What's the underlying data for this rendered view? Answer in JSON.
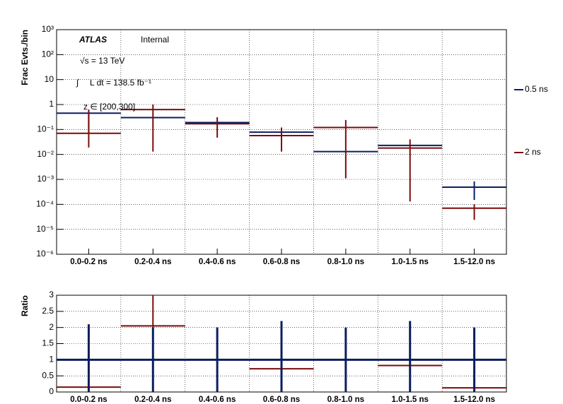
{
  "chart_data": [
    {
      "type": "errorbar",
      "ylabel": "Frac Evts./bin",
      "log_y": true,
      "grid": true,
      "legend": "right",
      "annotations": [
        "ATLAS",
        "Internal",
        "√s = 13 TeV",
        "∫",
        "L dt = 138.5 fb⁻¹",
        "z ∈ [200,300]"
      ],
      "categories": [
        "0.0-0.2 ns",
        "0.2-0.4 ns",
        "0.4-0.6 ns",
        "0.6-0.8 ns",
        "0.8-1.0 ns",
        "1.0-1.5 ns",
        "1.5-12.0 ns"
      ],
      "ylim": [
        1e-06,
        1000
      ],
      "yticks": [
        {
          "value": 1e-06,
          "label": "10⁻⁶"
        },
        {
          "value": 1e-05,
          "label": "10⁻⁵"
        },
        {
          "value": 0.0001,
          "label": "10⁻⁴"
        },
        {
          "value": 0.001,
          "label": "10⁻³"
        },
        {
          "value": 0.01,
          "label": "10⁻²"
        },
        {
          "value": 0.1,
          "label": "10⁻¹"
        },
        1,
        10,
        {
          "value": 100,
          "label": "10²"
        },
        {
          "value": 1000,
          "label": "10³"
        }
      ],
      "series": [
        {
          "name": "0.5 ns",
          "color": "#0b1d5e",
          "values": [
            0.45,
            0.3,
            0.19,
            0.078,
            0.013,
            0.023,
            0.00049
          ],
          "lower": [
            0.07,
            null,
            null,
            null,
            null,
            null,
            0.00015
          ],
          "upper": [
            0.5,
            null,
            null,
            null,
            null,
            null,
            0.00083
          ]
        },
        {
          "name": "2 ns",
          "color": "#7a0c0c",
          "values": [
            0.07,
            0.63,
            0.17,
            0.057,
            0.12,
            0.018,
            7e-05
          ],
          "lower": [
            0.019,
            0.013,
            0.047,
            0.013,
            0.0011,
            0.00013,
            2.4e-05
          ],
          "upper": [
            0.63,
            1,
            0.31,
            0.12,
            0.24,
            0.04,
            0.0001
          ]
        }
      ]
    },
    {
      "type": "errorbar",
      "ylabel": "Ratio",
      "log_y": false,
      "grid": true,
      "categories": [
        "0.0-0.2 ns",
        "0.2-0.4 ns",
        "0.4-0.6 ns",
        "0.6-0.8 ns",
        "0.8-1.0 ns",
        "1.0-1.5 ns",
        "1.5-12.0 ns"
      ],
      "ylim": [
        0,
        3
      ],
      "yticks": [
        0,
        0.5,
        1,
        1.5,
        2,
        2.5,
        3
      ],
      "series": [
        {
          "color": "#7a0c0c",
          "values": [
            0.15,
            2.05,
            1,
            0.72,
            1,
            0.82,
            0.13
          ],
          "lower": [
            null,
            0,
            0,
            0,
            null,
            0,
            null
          ],
          "upper": [
            null,
            3,
            2,
            2.1,
            null,
            2.2,
            null
          ]
        },
        {
          "color": "#0b1d5e",
          "values": [
            1,
            1,
            1,
            1,
            1,
            1,
            1
          ],
          "lower": [
            0,
            0,
            0,
            0,
            0,
            0,
            0
          ],
          "upper": [
            2.1,
            2,
            2,
            2.2,
            2,
            2.2,
            2
          ]
        }
      ]
    }
  ]
}
